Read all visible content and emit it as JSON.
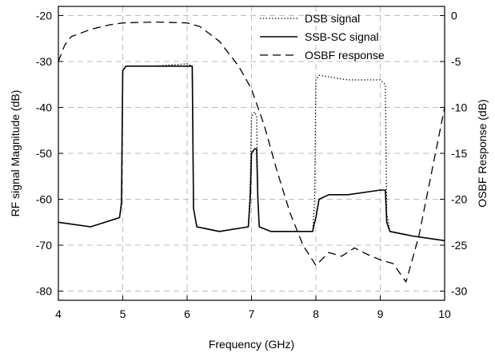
{
  "chart_data": {
    "type": "line",
    "title": "",
    "xlabel": "Frequency (GHz)",
    "ylabel": "RF signal Magnitude (dB)",
    "y2label": "OSBF Response (dB)",
    "xlim": [
      4,
      10
    ],
    "ylim": [
      -82,
      -18
    ],
    "y2lim": [
      -31,
      1
    ],
    "xticks": [
      "4",
      "5",
      "6",
      "7",
      "8",
      "9",
      "10"
    ],
    "yticks": [
      "-20",
      "-30",
      "-40",
      "-50",
      "-60",
      "-70",
      "-80"
    ],
    "y2ticks": [
      "0",
      "-5",
      "-10",
      "-15",
      "-20",
      "-25",
      "-30"
    ],
    "grid": true,
    "legend_position": "top-right",
    "series": [
      {
        "name": "DSB signal",
        "axis": "left",
        "style": "dotted",
        "x": [
          4.0,
          4.5,
          4.95,
          4.98,
          5.0,
          5.05,
          5.5,
          6.0,
          6.08,
          6.1,
          6.15,
          6.5,
          6.95,
          6.98,
          7.0,
          7.05,
          7.08,
          7.1,
          7.12,
          7.3,
          7.95,
          7.98,
          8.0,
          8.05,
          8.5,
          9.0,
          9.08,
          9.1,
          9.15,
          9.5,
          10.0
        ],
        "y": [
          -65,
          -66,
          -64,
          -60,
          -32,
          -31,
          -31,
          -30.5,
          -31,
          -62,
          -66,
          -67,
          -66,
          -57,
          -42,
          -41,
          -42,
          -60,
          -66,
          -67,
          -67,
          -60,
          -34,
          -33,
          -34,
          -34,
          -35,
          -63,
          -67,
          -68,
          -69
        ]
      },
      {
        "name": "SSB-SC signal",
        "axis": "left",
        "style": "solid",
        "x": [
          4.0,
          4.5,
          4.95,
          4.98,
          5.0,
          5.05,
          5.5,
          6.0,
          6.08,
          6.1,
          6.15,
          6.5,
          6.95,
          6.98,
          7.0,
          7.05,
          7.08,
          7.1,
          7.12,
          7.3,
          7.95,
          7.98,
          8.0,
          8.05,
          8.2,
          8.5,
          9.0,
          9.08,
          9.1,
          9.15,
          9.5,
          10.0
        ],
        "y": [
          -65,
          -66,
          -64,
          -61,
          -32,
          -31,
          -31,
          -31,
          -31,
          -62,
          -66,
          -67,
          -66,
          -60,
          -50,
          -49,
          -49,
          -60,
          -66,
          -67,
          -67,
          -65,
          -64,
          -60,
          -59,
          -59,
          -58,
          -58,
          -65,
          -67,
          -68,
          -69
        ]
      },
      {
        "name": "OSBF response",
        "axis": "right",
        "style": "dashed",
        "x": [
          4.0,
          4.1,
          4.2,
          4.5,
          4.8,
          5.0,
          5.5,
          6.0,
          6.2,
          6.5,
          6.8,
          7.0,
          7.2,
          7.4,
          7.6,
          7.8,
          8.0,
          8.2,
          8.4,
          8.6,
          8.8,
          9.0,
          9.2,
          9.4,
          9.5,
          9.6,
          9.8,
          10.0
        ],
        "y": [
          -5,
          -3.2,
          -2.3,
          -1.5,
          -1.0,
          -0.8,
          -0.7,
          -0.8,
          -1.2,
          -2.8,
          -5.5,
          -8.0,
          -12.0,
          -17.0,
          -21.5,
          -25.0,
          -27.2,
          -25.8,
          -26.2,
          -25.3,
          -26.0,
          -26.6,
          -27.0,
          -29.0,
          -26.5,
          -24.0,
          -17.0,
          -10.0
        ]
      }
    ]
  }
}
